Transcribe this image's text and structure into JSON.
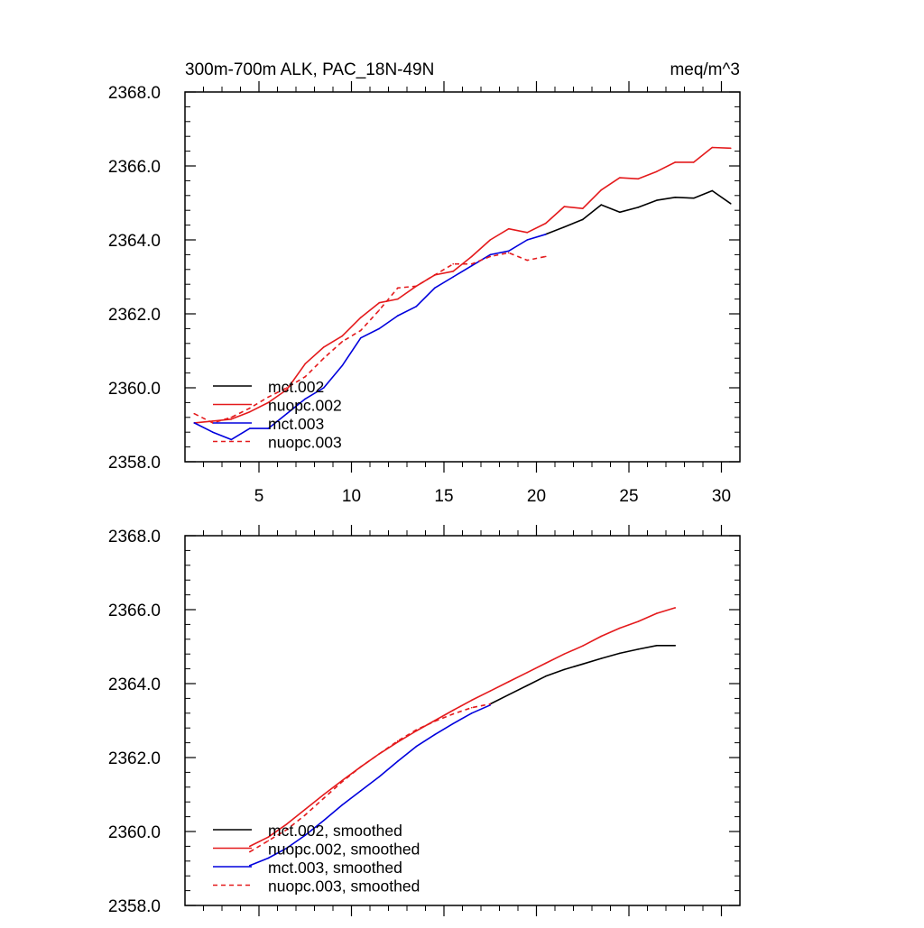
{
  "colors": {
    "mct002": "#000000",
    "nuopc002": "#e41a1c",
    "mct003": "#0000dd",
    "nuopc003": "#e41a1c"
  },
  "chart_data": [
    {
      "type": "line",
      "title": "300m-700m ALK, PAC_18N-49N",
      "units_label": "meq/m^3",
      "xlabel": "",
      "ylabel": "",
      "xlim": [
        1,
        31
      ],
      "ylim": [
        2358.0,
        2368.0
      ],
      "x_ticks": [
        5,
        10,
        15,
        20,
        25,
        30
      ],
      "x_tick_labels": [
        "5",
        "10",
        "15",
        "20",
        "25",
        "30"
      ],
      "y_ticks": [
        2358.0,
        2360.0,
        2362.0,
        2364.0,
        2366.0,
        2368.0
      ],
      "y_tick_labels": [
        "2358.0",
        "2360.0",
        "2362.0",
        "2364.0",
        "2366.0",
        "2368.0"
      ],
      "grid": false,
      "legend_position": "bottom-left",
      "series": [
        {
          "name": "mct.002",
          "color": "#000000",
          "dash": "solid",
          "x": [
            20.5,
            21.5,
            22.5,
            23.5,
            24.5,
            25.5,
            26.5,
            27.5,
            28.5,
            29.5,
            30.5
          ],
          "y": [
            2364.15,
            2364.35,
            2364.55,
            2364.95,
            2364.75,
            2364.88,
            2365.07,
            2365.15,
            2365.13,
            2365.33,
            2364.98
          ]
        },
        {
          "name": "nuopc.002",
          "color": "#e41a1c",
          "dash": "solid",
          "x": [
            1.5,
            2.5,
            3.5,
            4.5,
            5.5,
            6.5,
            7.5,
            8.5,
            9.5,
            10.5,
            11.5,
            12.5,
            13.5,
            14.5,
            15.5,
            16.5,
            17.5,
            18.5,
            19.5,
            20.5,
            21.5,
            22.5,
            23.5,
            24.5,
            25.5,
            26.5,
            27.5,
            28.5,
            29.5,
            30.5
          ],
          "y": [
            2359.05,
            2359.1,
            2359.15,
            2359.35,
            2359.6,
            2359.95,
            2360.65,
            2361.1,
            2361.4,
            2361.9,
            2362.3,
            2362.4,
            2362.75,
            2363.05,
            2363.15,
            2363.55,
            2364.0,
            2364.3,
            2364.2,
            2364.45,
            2364.9,
            2364.85,
            2365.35,
            2365.68,
            2365.65,
            2365.85,
            2366.1,
            2366.1,
            2366.5,
            2366.48
          ]
        },
        {
          "name": "mct.003",
          "color": "#0000dd",
          "dash": "solid",
          "x": [
            1.5,
            2.5,
            3.5,
            4.5,
            5.5,
            6.5,
            7.5,
            8.5,
            9.5,
            10.5,
            11.5,
            12.5,
            13.5,
            14.5,
            15.5,
            16.5,
            17.5,
            18.5,
            19.5,
            20.5
          ],
          "y": [
            2359.05,
            2358.8,
            2358.6,
            2358.9,
            2358.9,
            2359.3,
            2359.7,
            2360.0,
            2360.6,
            2361.35,
            2361.6,
            2361.95,
            2362.2,
            2362.7,
            2363.0,
            2363.3,
            2363.6,
            2363.7,
            2364.0,
            2364.15
          ]
        },
        {
          "name": "nuopc.003",
          "color": "#e41a1c",
          "dash": "dashed",
          "x": [
            1.5,
            2.5,
            3.5,
            4.5,
            5.5,
            6.5,
            7.5,
            8.5,
            9.5,
            10.5,
            11.5,
            12.5,
            13.5,
            14.5,
            15.5,
            16.5,
            17.5,
            18.5,
            19.5,
            20.5
          ],
          "y": [
            2359.3,
            2359.05,
            2359.2,
            2359.45,
            2359.75,
            2360.0,
            2360.3,
            2360.8,
            2361.25,
            2361.55,
            2362.1,
            2362.7,
            2362.75,
            2363.05,
            2363.35,
            2363.35,
            2363.55,
            2363.65,
            2363.45,
            2363.55
          ]
        }
      ]
    },
    {
      "type": "line",
      "title": "",
      "xlabel": "",
      "ylabel": "",
      "xlim": [
        1,
        31
      ],
      "ylim": [
        2358.0,
        2368.0
      ],
      "x_ticks": [
        5,
        10,
        15,
        20,
        25,
        30
      ],
      "x_tick_labels": [],
      "y_ticks": [
        2358.0,
        2360.0,
        2362.0,
        2364.0,
        2366.0,
        2368.0
      ],
      "y_tick_labels": [
        "2358.0",
        "2360.0",
        "2362.0",
        "2364.0",
        "2366.0",
        "2368.0"
      ],
      "grid": false,
      "legend_position": "bottom-left",
      "series": [
        {
          "name": "mct.002, smoothed",
          "color": "#000000",
          "dash": "solid",
          "x": [
            17.5,
            18.5,
            19.5,
            20.5,
            21.5,
            22.5,
            23.5,
            24.5,
            25.5,
            26.5,
            27.5
          ],
          "y": [
            2363.45,
            2363.7,
            2363.95,
            2364.2,
            2364.38,
            2364.53,
            2364.68,
            2364.82,
            2364.93,
            2365.03,
            2365.03
          ]
        },
        {
          "name": "nuopc.002, smoothed",
          "color": "#e41a1c",
          "dash": "solid",
          "x": [
            4.5,
            5.5,
            6.5,
            7.5,
            8.5,
            9.5,
            10.5,
            11.5,
            12.5,
            13.5,
            14.5,
            15.5,
            16.5,
            17.5,
            18.5,
            19.5,
            20.5,
            21.5,
            22.5,
            23.5,
            24.5,
            25.5,
            26.5,
            27.5
          ],
          "y": [
            2359.6,
            2359.85,
            2360.2,
            2360.6,
            2361.0,
            2361.38,
            2361.75,
            2362.1,
            2362.42,
            2362.72,
            2363.0,
            2363.28,
            2363.55,
            2363.8,
            2364.05,
            2364.3,
            2364.55,
            2364.8,
            2365.02,
            2365.28,
            2365.5,
            2365.68,
            2365.9,
            2366.05
          ]
        },
        {
          "name": "mct.003, smoothed",
          "color": "#0000dd",
          "dash": "solid",
          "x": [
            4.5,
            5.5,
            6.5,
            7.5,
            8.5,
            9.5,
            10.5,
            11.5,
            12.5,
            13.5,
            14.5,
            15.5,
            16.5,
            17.5
          ],
          "y": [
            2359.08,
            2359.28,
            2359.55,
            2359.9,
            2360.3,
            2360.72,
            2361.1,
            2361.48,
            2361.9,
            2362.3,
            2362.62,
            2362.92,
            2363.2,
            2363.42
          ]
        },
        {
          "name": "nuopc.003, smoothed",
          "color": "#e41a1c",
          "dash": "dashed",
          "x": [
            4.5,
            5.5,
            6.5,
            7.5,
            8.5,
            9.5,
            10.5,
            11.5,
            12.5,
            13.5,
            14.5,
            15.5,
            16.5,
            17.5
          ],
          "y": [
            2359.45,
            2359.75,
            2360.05,
            2360.45,
            2360.9,
            2361.35,
            2361.75,
            2362.1,
            2362.45,
            2362.75,
            2362.98,
            2363.18,
            2363.35,
            2363.45
          ]
        }
      ]
    }
  ]
}
